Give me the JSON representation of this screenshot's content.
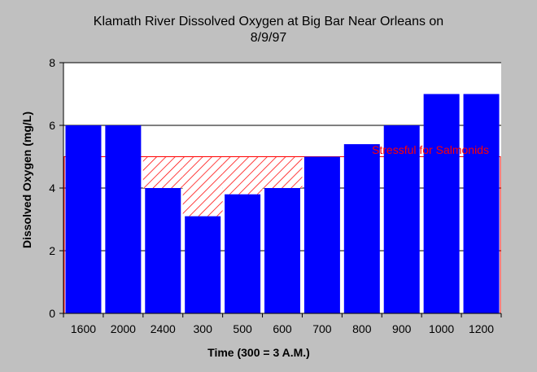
{
  "chart_data": {
    "type": "bar",
    "title": [
      "Klamath River Dissolved Oxygen at Big Bar Near Orleans on",
      "8/9/97"
    ],
    "xlabel": "Time (300 = 3 A.M.)",
    "ylabel": "Dissolved Oxygen (mg/L)",
    "categories": [
      "1600",
      "2000",
      "2400",
      "300",
      "500",
      "600",
      "700",
      "800",
      "900",
      "1000",
      "1200"
    ],
    "values": [
      6,
      6,
      4,
      3.1,
      3.8,
      4,
      5,
      5.4,
      6,
      7,
      7
    ],
    "ylim": [
      0,
      8
    ],
    "yticks": [
      0,
      2,
      4,
      6,
      8
    ],
    "grid": true,
    "threshold": {
      "value": 5,
      "label": "Stressful for Salmonids",
      "color": "#ff0000"
    },
    "colors": {
      "bar": "#0000ff",
      "background": "#c0c0c0",
      "plot_area": "#ffffff",
      "hatch": "#ff0000"
    }
  }
}
